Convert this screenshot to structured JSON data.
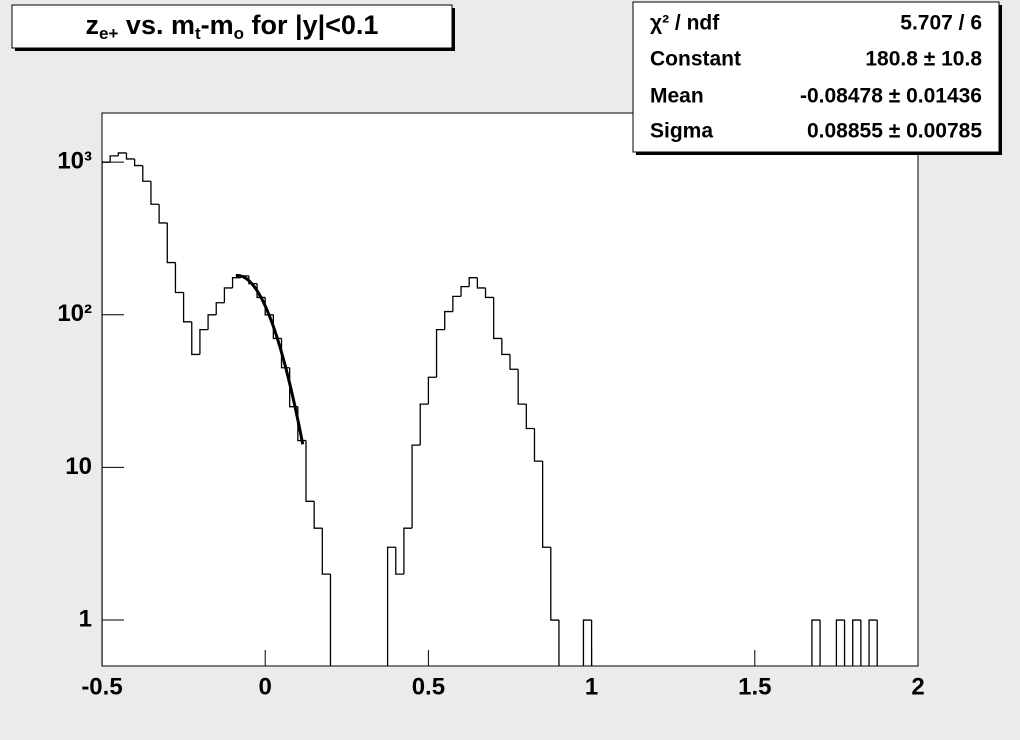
{
  "chart_data": {
    "type": "histogram",
    "title": [
      {
        "text": "z"
      },
      {
        "text": "e+",
        "sub": true
      },
      {
        "text": " vs. m"
      },
      {
        "text": "t",
        "sub": true
      },
      {
        "text": "-m"
      },
      {
        "text": "o",
        "sub": true
      },
      {
        "text": " for |y|<0.1"
      }
    ],
    "bins": [
      -0.5,
      -0.475,
      -0.45,
      -0.425,
      -0.4,
      -0.375,
      -0.35,
      -0.325,
      -0.3,
      -0.275,
      -0.25,
      -0.225,
      -0.2,
      -0.175,
      -0.15,
      -0.125,
      -0.1,
      -0.075,
      -0.05,
      -0.025,
      0,
      0.025,
      0.05,
      0.075,
      0.1,
      0.125,
      0.15,
      0.175,
      0.2,
      0.225,
      0.25,
      0.275,
      0.3,
      0.325,
      0.35,
      0.375,
      0.4,
      0.425,
      0.45,
      0.475,
      0.5,
      0.525,
      0.55,
      0.575,
      0.6,
      0.625,
      0.65,
      0.675,
      0.7,
      0.725,
      0.75,
      0.775,
      0.8,
      0.825,
      0.85,
      0.875,
      0.9,
      0.925,
      0.95,
      0.975,
      1,
      1.025,
      1.05,
      1.075,
      1.1,
      1.125,
      1.15,
      1.175,
      1.2,
      1.225,
      1.25,
      1.275,
      1.3,
      1.325,
      1.35,
      1.375,
      1.4,
      1.425,
      1.45,
      1.475,
      1.5,
      1.525,
      1.55,
      1.575,
      1.6,
      1.625,
      1.65,
      1.675,
      1.7,
      1.725,
      1.75,
      1.775,
      1.8,
      1.825,
      1.85,
      1.875,
      1.9,
      1.925,
      1.95,
      1.975,
      2
    ],
    "values": [
      1000,
      1100,
      1150,
      1050,
      950,
      750,
      530,
      400,
      220,
      140,
      90,
      55,
      80,
      100,
      120,
      150,
      175,
      180,
      160,
      130,
      100,
      70,
      45,
      25,
      15,
      6,
      4,
      2,
      0,
      0,
      0,
      0,
      0,
      0,
      0,
      3,
      2,
      4,
      14,
      26,
      39,
      80,
      105,
      132,
      153,
      175,
      150,
      130,
      70,
      55,
      44,
      26,
      18,
      11,
      3,
      1,
      0,
      0,
      0,
      1,
      0,
      0,
      0,
      0,
      0,
      0,
      0,
      0,
      0,
      0,
      0,
      0,
      0,
      0,
      0,
      0,
      0,
      0,
      0,
      0,
      0,
      0,
      0,
      0,
      0,
      0,
      0,
      1,
      0,
      0,
      1,
      0,
      1,
      0,
      1,
      0,
      0,
      0,
      0,
      0
    ],
    "color": "#000000",
    "xlim": [
      -0.5,
      2
    ],
    "xticks": [
      -0.5,
      0,
      0.5,
      1,
      1.5,
      2
    ],
    "ylim": [
      0.5,
      2100
    ],
    "yticks": [
      1,
      10,
      {
        "value": 100,
        "label": "10²"
      },
      {
        "value": 1000,
        "label": "10³"
      }
    ],
    "log_y": true,
    "stats": [
      {
        "name": "χ² / ndf",
        "label": "5.707 / 6"
      },
      {
        "name": "Constant",
        "value": 180.8,
        "error": 10.8,
        "label": "180.8 ± 10.8"
      },
      {
        "name": "Mean",
        "value": -0.08478,
        "error": 0.01436,
        "label": "-0.08478 ± 0.01436"
      },
      {
        "name": "Sigma",
        "value": 0.08855,
        "error": 0.00785,
        "label": "0.08855 ± 0.00785"
      }
    ],
    "fit_range": [
      -0.09,
      0.115
    ]
  }
}
